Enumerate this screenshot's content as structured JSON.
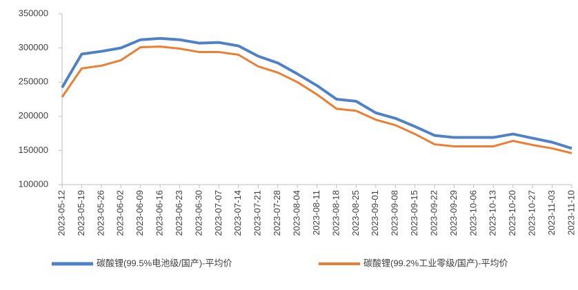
{
  "chart_data": {
    "type": "line",
    "categories": [
      "2023-05-12",
      "2023-05-19",
      "2023-05-26",
      "2023-06-02",
      "2023-06-09",
      "2023-06-16",
      "2023-06-23",
      "2023-06-30",
      "2023-07-07",
      "2023-07-14",
      "2023-07-21",
      "2023-07-28",
      "2023-08-04",
      "2023-08-11",
      "2023-08-18",
      "2023-08-25",
      "2023-09-01",
      "2023-09-08",
      "2023-09-15",
      "2023-09-22",
      "2023-09-29",
      "2023-10-06",
      "2023-10-13",
      "2023-10-20",
      "2023-10-27",
      "2023-11-03",
      "2023-11-10"
    ],
    "series": [
      {
        "name": "碳酸锂(99.5%电池级/国产)-平均价",
        "color": "#4f81c7",
        "width": 4,
        "values": [
          242000,
          291000,
          295000,
          300000,
          312000,
          314000,
          312000,
          307000,
          308000,
          303000,
          288000,
          278000,
          262000,
          245000,
          225000,
          222000,
          205000,
          197000,
          185000,
          172000,
          169000,
          169000,
          169000,
          174000,
          168000,
          162000,
          153000
        ]
      },
      {
        "name": "碳酸锂(99.2%工业零级/国产)-平均价",
        "color": "#ed7d31",
        "width": 3,
        "values": [
          228000,
          270000,
          274000,
          282000,
          301000,
          302000,
          299000,
          294000,
          294000,
          290000,
          273000,
          264000,
          250000,
          232000,
          211000,
          208000,
          195000,
          187000,
          174000,
          159000,
          156000,
          156000,
          156000,
          164000,
          158000,
          153000,
          146000
        ]
      }
    ],
    "ylim": [
      100000,
      350000
    ],
    "yticks": [
      100000,
      150000,
      200000,
      250000,
      300000,
      350000
    ],
    "grid": false,
    "legend": "bottom"
  }
}
